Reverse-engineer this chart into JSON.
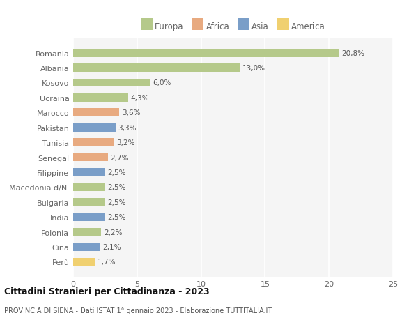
{
  "categories": [
    "Romania",
    "Albania",
    "Kosovo",
    "Ucraina",
    "Marocco",
    "Pakistan",
    "Tunisia",
    "Senegal",
    "Filippine",
    "Macedonia d/N.",
    "Bulgaria",
    "India",
    "Polonia",
    "Cina",
    "Perù"
  ],
  "values": [
    20.8,
    13.0,
    6.0,
    4.3,
    3.6,
    3.3,
    3.2,
    2.7,
    2.5,
    2.5,
    2.5,
    2.5,
    2.2,
    2.1,
    1.7
  ],
  "labels": [
    "20,8%",
    "13,0%",
    "6,0%",
    "4,3%",
    "3,6%",
    "3,3%",
    "3,2%",
    "2,7%",
    "2,5%",
    "2,5%",
    "2,5%",
    "2,5%",
    "2,2%",
    "2,1%",
    "1,7%"
  ],
  "colors": [
    "#b5c98a",
    "#b5c98a",
    "#b5c98a",
    "#b5c98a",
    "#e8aa80",
    "#7a9ec8",
    "#e8aa80",
    "#e8aa80",
    "#7a9ec8",
    "#b5c98a",
    "#b5c98a",
    "#7a9ec8",
    "#b5c98a",
    "#7a9ec8",
    "#f0d070"
  ],
  "legend_labels": [
    "Europa",
    "Africa",
    "Asia",
    "America"
  ],
  "legend_colors": [
    "#b5c98a",
    "#e8aa80",
    "#7a9ec8",
    "#f0d070"
  ],
  "title": "Cittadini Stranieri per Cittadinanza - 2023",
  "subtitle": "PROVINCIA DI SIENA - Dati ISTAT 1° gennaio 2023 - Elaborazione TUTTITALIA.IT",
  "xlim": [
    0,
    25
  ],
  "xticks": [
    0,
    5,
    10,
    15,
    20,
    25
  ],
  "plot_bg_color": "#f5f5f5",
  "background_color": "#ffffff",
  "grid_color": "#ffffff",
  "label_color": "#666666",
  "bar_label_color": "#555555"
}
